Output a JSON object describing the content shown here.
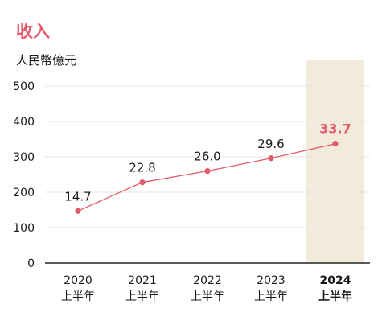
{
  "chart_data": {
    "type": "line",
    "title": "收入",
    "ylabel": "人民幣億元",
    "xlabel": "",
    "ylim": [
      0,
      500
    ],
    "yticks": [
      0,
      100,
      200,
      300,
      400,
      500
    ],
    "grid": true,
    "categories": [
      {
        "year": "2020",
        "period": "上半年"
      },
      {
        "year": "2021",
        "period": "上半年"
      },
      {
        "year": "2022",
        "period": "上半年"
      },
      {
        "year": "2023",
        "period": "上半年"
      },
      {
        "year": "2024",
        "period": "上半年"
      }
    ],
    "series": [
      {
        "values": [
          14.7,
          22.8,
          26.0,
          29.6,
          33.7
        ],
        "labels": [
          "14.7",
          "22.8",
          "26.0",
          "29.6",
          "33.7"
        ]
      }
    ],
    "scale_factor": 10,
    "highlight_index": 4,
    "colors": {
      "title": "#e25a6b",
      "line": "#e25a6b",
      "point": "#e25a6b",
      "highlight_label": "#e25a6b",
      "highlight_band": "#f2eadb",
      "text": "#1a1a1a",
      "grid": "#e6e6e6",
      "axis": "#222222"
    }
  }
}
